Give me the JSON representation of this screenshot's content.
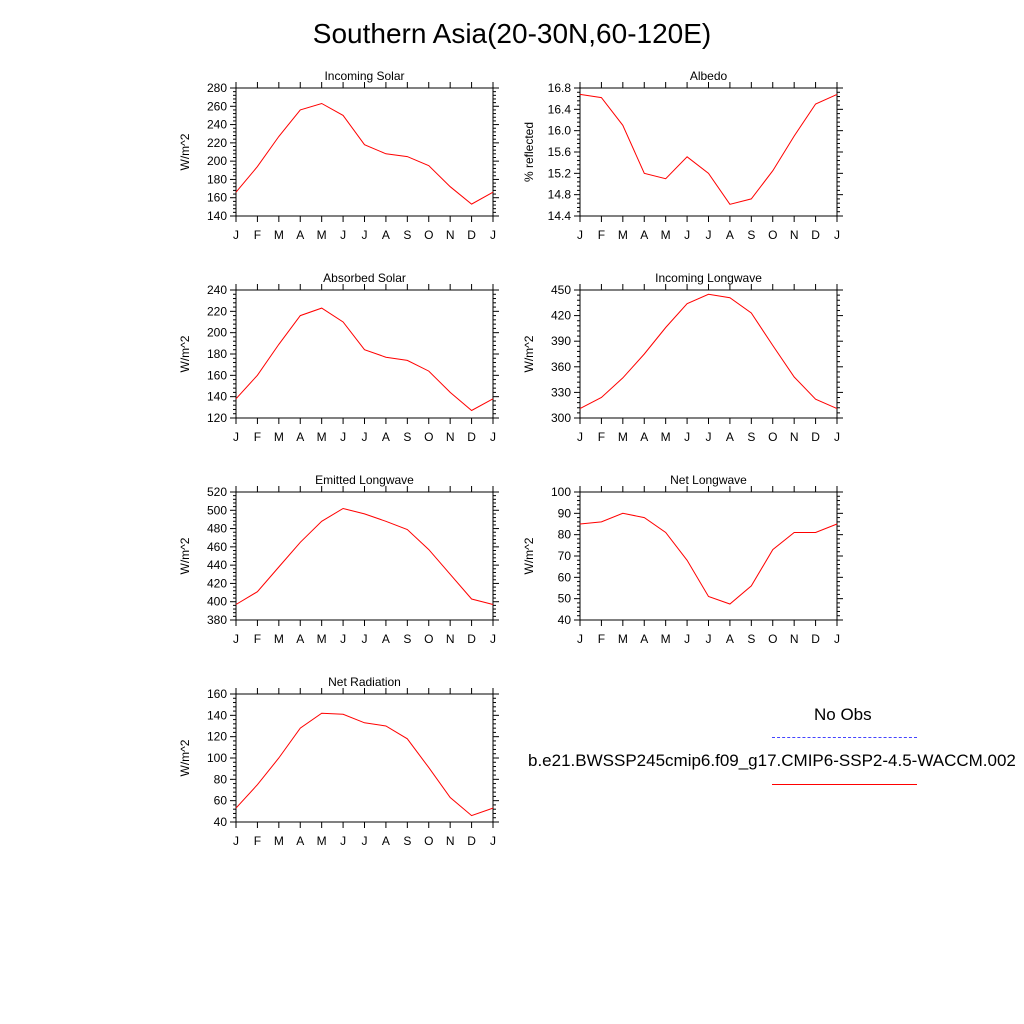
{
  "page": {
    "title": "Southern Asia(20-30N,60-120E)"
  },
  "legend": {
    "obs_label": "No Obs",
    "model_label": "b.e21.BWSSP245cmip6.f09_g17.CMIP6-SSP2-4.5-WACCM.002",
    "obs_color": "#4444ff",
    "model_color": "#ff0000"
  },
  "chart_data": [
    {
      "type": "line",
      "title": "Incoming Solar",
      "ylabel": "W/m^2",
      "categories": [
        "J",
        "F",
        "M",
        "A",
        "M",
        "J",
        "J",
        "A",
        "S",
        "O",
        "N",
        "D",
        "J"
      ],
      "ylim": [
        140,
        280
      ],
      "yticks": [
        140,
        160,
        180,
        200,
        220,
        240,
        260,
        280
      ],
      "ytick_labels": [
        "140",
        "160",
        "180",
        "200",
        "220",
        "240",
        "260",
        "280"
      ],
      "series": [
        {
          "values": [
            166,
            194,
            227,
            256,
            263,
            250,
            218,
            208,
            205,
            195,
            172,
            153,
            166
          ],
          "color": "#ff0000"
        }
      ]
    },
    {
      "type": "line",
      "title": "Albedo",
      "ylabel": "% reflected",
      "categories": [
        "J",
        "F",
        "M",
        "A",
        "M",
        "J",
        "J",
        "A",
        "S",
        "O",
        "N",
        "D",
        "J"
      ],
      "ylim": [
        14.4,
        16.8
      ],
      "yticks": [
        14.4,
        14.8,
        15.2,
        15.6,
        16.0,
        16.4,
        16.8
      ],
      "ytick_labels": [
        "14.4",
        "14.8",
        "15.2",
        "15.6",
        "16.0",
        "16.4",
        "16.8"
      ],
      "series": [
        {
          "values": [
            16.68,
            16.62,
            16.1,
            15.2,
            15.1,
            15.51,
            15.2,
            14.62,
            14.72,
            15.25,
            15.9,
            16.5,
            16.68
          ],
          "color": "#ff0000"
        }
      ]
    },
    {
      "type": "line",
      "title": "Absorbed Solar",
      "ylabel": "W/m^2",
      "categories": [
        "J",
        "F",
        "M",
        "A",
        "M",
        "J",
        "J",
        "A",
        "S",
        "O",
        "N",
        "D",
        "J"
      ],
      "ylim": [
        120,
        240
      ],
      "yticks": [
        120,
        140,
        160,
        180,
        200,
        220,
        240
      ],
      "ytick_labels": [
        "120",
        "140",
        "160",
        "180",
        "200",
        "220",
        "240"
      ],
      "series": [
        {
          "values": [
            138,
            160,
            189,
            216,
            223,
            210,
            184,
            177,
            174,
            164,
            144,
            127,
            138
          ],
          "color": "#ff0000"
        }
      ]
    },
    {
      "type": "line",
      "title": "Incoming Longwave",
      "ylabel": "W/m^2",
      "categories": [
        "J",
        "F",
        "M",
        "A",
        "M",
        "J",
        "J",
        "A",
        "S",
        "O",
        "N",
        "D",
        "J"
      ],
      "ylim": [
        300,
        450
      ],
      "yticks": [
        300,
        330,
        360,
        390,
        420,
        450
      ],
      "ytick_labels": [
        "300",
        "330",
        "360",
        "390",
        "420",
        "450"
      ],
      "series": [
        {
          "values": [
            311,
            324,
            347,
            375,
            406,
            434,
            445,
            441,
            423,
            385,
            348,
            322,
            311
          ],
          "color": "#ff0000"
        }
      ]
    },
    {
      "type": "line",
      "title": "Emitted Longwave",
      "ylabel": "W/m^2",
      "categories": [
        "J",
        "F",
        "M",
        "A",
        "M",
        "J",
        "J",
        "A",
        "S",
        "O",
        "N",
        "D",
        "J"
      ],
      "ylim": [
        380,
        520
      ],
      "yticks": [
        380,
        400,
        420,
        440,
        460,
        480,
        500,
        520
      ],
      "ytick_labels": [
        "380",
        "400",
        "420",
        "440",
        "460",
        "480",
        "500",
        "520"
      ],
      "series": [
        {
          "values": [
            397,
            411,
            438,
            465,
            488,
            502,
            496,
            488,
            479,
            457,
            430,
            403,
            397
          ],
          "color": "#ff0000"
        }
      ]
    },
    {
      "type": "line",
      "title": "Net Longwave",
      "ylabel": "W/m^2",
      "categories": [
        "J",
        "F",
        "M",
        "A",
        "M",
        "J",
        "J",
        "A",
        "S",
        "O",
        "N",
        "D",
        "J"
      ],
      "ylim": [
        40,
        100
      ],
      "yticks": [
        40,
        50,
        60,
        70,
        80,
        90,
        100
      ],
      "ytick_labels": [
        "40",
        "50",
        "60",
        "70",
        "80",
        "90",
        "100"
      ],
      "series": [
        {
          "values": [
            85,
            86,
            90,
            88,
            81,
            68,
            51,
            47.5,
            56,
            73,
            81,
            81,
            85
          ],
          "color": "#ff0000"
        }
      ]
    },
    {
      "type": "line",
      "title": "Net Radiation",
      "ylabel": "W/m^2",
      "categories": [
        "J",
        "F",
        "M",
        "A",
        "M",
        "J",
        "J",
        "A",
        "S",
        "O",
        "N",
        "D",
        "J"
      ],
      "ylim": [
        40,
        160
      ],
      "yticks": [
        40,
        60,
        80,
        100,
        120,
        140,
        160
      ],
      "ytick_labels": [
        "40",
        "60",
        "80",
        "100",
        "120",
        "140",
        "160"
      ],
      "series": [
        {
          "values": [
            53,
            75,
            100,
            128,
            142,
            141,
            133,
            130,
            118,
            91,
            63,
            46,
            53
          ],
          "color": "#ff0000"
        }
      ]
    }
  ]
}
